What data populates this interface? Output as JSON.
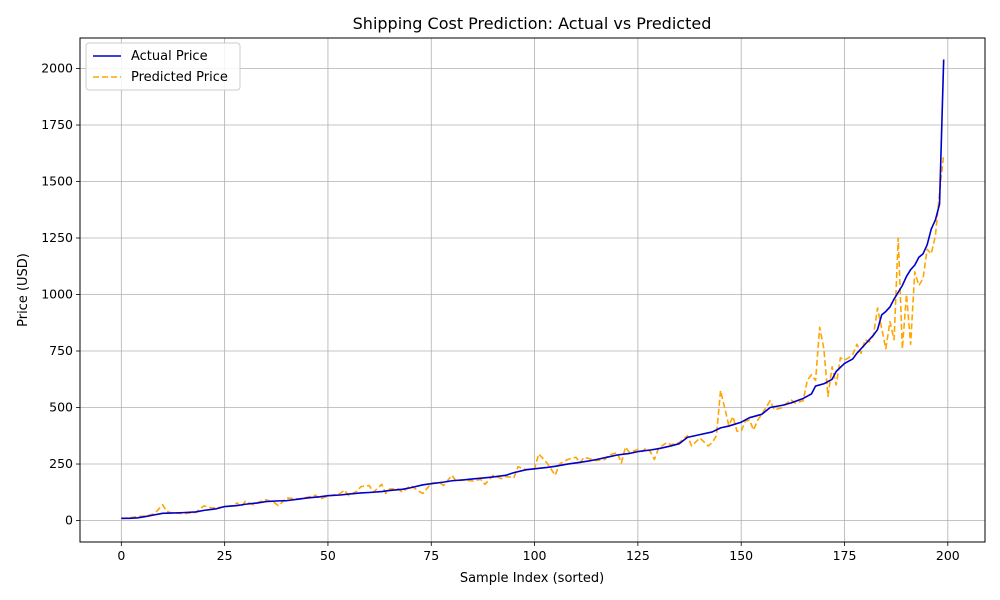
{
  "chart_data": {
    "type": "line",
    "title": "Shipping Cost Prediction: Actual vs Predicted",
    "xlabel": "Sample Index (sorted)",
    "ylabel": "Price (USD)",
    "xlim": [
      -10,
      209
    ],
    "ylim": [
      -95,
      2135
    ],
    "xticks": [
      0,
      25,
      50,
      75,
      100,
      125,
      150,
      175,
      200
    ],
    "yticks": [
      0,
      250,
      500,
      750,
      1000,
      1250,
      1500,
      1750,
      2000
    ],
    "grid": true,
    "legend_position": "top-left",
    "series": [
      {
        "name": "Actual Price",
        "color": "#0000cc",
        "style": "solid",
        "x": [
          0,
          2,
          4,
          6,
          8,
          10,
          12,
          15,
          18,
          20,
          23,
          25,
          28,
          30,
          33,
          35,
          38,
          40,
          43,
          45,
          48,
          50,
          53,
          55,
          58,
          60,
          63,
          65,
          68,
          70,
          73,
          75,
          78,
          80,
          83,
          85,
          88,
          90,
          93,
          95,
          98,
          100,
          103,
          105,
          108,
          110,
          113,
          115,
          118,
          120,
          123,
          125,
          128,
          130,
          133,
          135,
          137,
          140,
          143,
          145,
          147,
          150,
          152,
          155,
          157,
          160,
          162,
          165,
          167,
          168,
          170,
          172,
          173,
          175,
          177,
          178,
          180,
          182,
          183,
          184,
          185,
          186,
          187,
          188,
          189,
          190,
          191,
          192,
          193,
          194,
          195,
          196,
          197,
          198,
          199
        ],
        "values": [
          10,
          10,
          12,
          18,
          25,
          32,
          33,
          35,
          38,
          45,
          52,
          62,
          66,
          72,
          78,
          84,
          87,
          88,
          95,
          100,
          105,
          110,
          113,
          117,
          122,
          124,
          128,
          133,
          138,
          145,
          158,
          163,
          170,
          176,
          180,
          184,
          189,
          193,
          200,
          212,
          225,
          229,
          235,
          240,
          250,
          255,
          263,
          270,
          282,
          290,
          297,
          305,
          312,
          318,
          330,
          340,
          368,
          380,
          392,
          410,
          418,
          435,
          455,
          470,
          500,
          510,
          520,
          540,
          560,
          595,
          605,
          625,
          660,
          695,
          715,
          740,
          780,
          820,
          845,
          910,
          925,
          945,
          980,
          1010,
          1040,
          1080,
          1110,
          1130,
          1165,
          1180,
          1220,
          1290,
          1330,
          1400,
          2040
        ]
      },
      {
        "name": "Predicted Price",
        "color": "#ffa500",
        "style": "dashed",
        "x": [
          0,
          2,
          4,
          6,
          8,
          10,
          11,
          12,
          15,
          18,
          20,
          22,
          25,
          27,
          28,
          29,
          30,
          32,
          33,
          35,
          37,
          38,
          40,
          43,
          45,
          47,
          48,
          50,
          53,
          54,
          55,
          57,
          58,
          60,
          61,
          63,
          64,
          65,
          67,
          68,
          70,
          72,
          73,
          75,
          77,
          78,
          80,
          81,
          83,
          85,
          87,
          88,
          90,
          92,
          93,
          95,
          96,
          98,
          100,
          101,
          103,
          105,
          106,
          108,
          110,
          111,
          112,
          113,
          115,
          117,
          118,
          120,
          121,
          122,
          123,
          125,
          126,
          127,
          128,
          129,
          130,
          132,
          133,
          135,
          137,
          138,
          140,
          142,
          143,
          144,
          145,
          146,
          147,
          148,
          149,
          150,
          151,
          152,
          153,
          154,
          155,
          157,
          158,
          160,
          162,
          163,
          165,
          166,
          167,
          168,
          169,
          170,
          171,
          172,
          173,
          174,
          175,
          176,
          177,
          178,
          179,
          180,
          181,
          182,
          183,
          184,
          185,
          186,
          187,
          188,
          189,
          190,
          191,
          192,
          193,
          194,
          195,
          196,
          197,
          198,
          199
        ],
        "values": [
          8,
          12,
          18,
          20,
          30,
          70,
          40,
          35,
          30,
          36,
          65,
          55,
          60,
          65,
          78,
          60,
          85,
          70,
          80,
          92,
          80,
          65,
          100,
          95,
          103,
          112,
          95,
          108,
          120,
          135,
          110,
          130,
          150,
          155,
          125,
          160,
          120,
          140,
          140,
          125,
          155,
          130,
          120,
          165,
          168,
          155,
          200,
          175,
          180,
          175,
          182,
          160,
          200,
          185,
          195,
          190,
          238,
          225,
          230,
          295,
          255,
          200,
          250,
          270,
          280,
          255,
          280,
          275,
          265,
          270,
          290,
          300,
          255,
          325,
          300,
          315,
          305,
          320,
          305,
          270,
          320,
          345,
          335,
          345,
          375,
          330,
          365,
          330,
          345,
          375,
          575,
          500,
          420,
          460,
          395,
          395,
          440,
          445,
          400,
          445,
          470,
          530,
          490,
          500,
          535,
          520,
          530,
          620,
          645,
          620,
          855,
          760,
          550,
          680,
          600,
          720,
          710,
          720,
          735,
          780,
          740,
          800,
          790,
          820,
          940,
          850,
          760,
          880,
          800,
          1250,
          760,
          1000,
          780,
          1100,
          1040,
          1070,
          1200,
          1180,
          1260,
          1450,
          1620
        ]
      }
    ]
  }
}
